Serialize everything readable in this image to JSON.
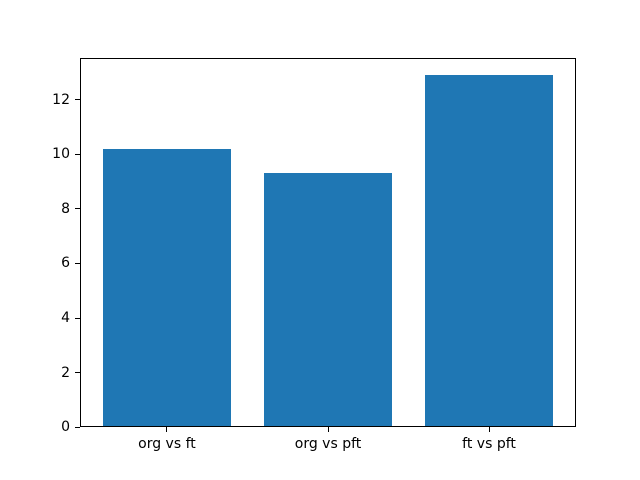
{
  "figure": {
    "background": "#ffffff",
    "spine_color": "#000000",
    "tick_color": "#000000",
    "text_color": "#000000"
  },
  "chart_data": {
    "type": "bar",
    "title": "",
    "xlabel": "",
    "ylabel": "",
    "categories": [
      "org vs ft",
      "org vs pft",
      "ft vs pft"
    ],
    "values": [
      10.2,
      9.3,
      12.9
    ],
    "bar_color": "#1f77b4",
    "bar_width_fraction": 0.8,
    "xlim": [
      -0.54,
      2.54
    ],
    "ylim": [
      0,
      13.545
    ],
    "yticks": [
      0,
      2,
      4,
      6,
      8,
      10,
      12
    ],
    "grid": false,
    "legend": null
  }
}
